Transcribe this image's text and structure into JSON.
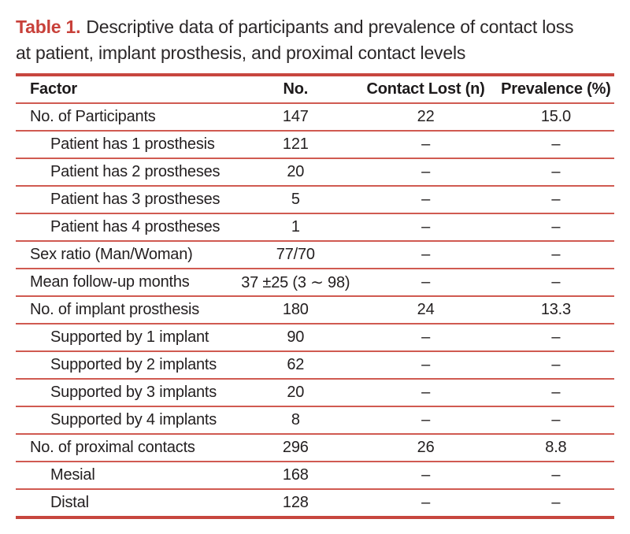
{
  "caption": {
    "label": "Table 1.",
    "line1": "Descriptive data of participants and prevalence of contact loss",
    "line2": "at patient, implant prosthesis, and proximal contact levels"
  },
  "table": {
    "columns": [
      "Factor",
      "No.",
      "Contact Lost (n)",
      "Prevalence (%)"
    ],
    "rows": [
      {
        "factor": "No. of Participants",
        "indent": false,
        "no": "147",
        "lost": "22",
        "prev": "15.0"
      },
      {
        "factor": "Patient has 1 prosthesis",
        "indent": true,
        "no": "121",
        "lost": "–",
        "prev": "–"
      },
      {
        "factor": "Patient has 2 prostheses",
        "indent": true,
        "no": "20",
        "lost": "–",
        "prev": "–"
      },
      {
        "factor": "Patient has 3 prostheses",
        "indent": true,
        "no": "5",
        "lost": "–",
        "prev": "–"
      },
      {
        "factor": "Patient has 4 prostheses",
        "indent": true,
        "no": "1",
        "lost": "–",
        "prev": "–"
      },
      {
        "factor": "Sex ratio (Man/Woman)",
        "indent": false,
        "no": "77/70",
        "lost": "–",
        "prev": "–"
      },
      {
        "factor": "Mean follow-up months",
        "indent": false,
        "no": "37 ±25 (3 ∼ 98)",
        "lost": "–",
        "prev": "–"
      },
      {
        "factor": "No. of implant prosthesis",
        "indent": false,
        "no": "180",
        "lost": "24",
        "prev": "13.3"
      },
      {
        "factor": "Supported by 1 implant",
        "indent": true,
        "no": "90",
        "lost": "–",
        "prev": "–"
      },
      {
        "factor": "Supported by 2 implants",
        "indent": true,
        "no": "62",
        "lost": "–",
        "prev": "–"
      },
      {
        "factor": "Supported by 3 implants",
        "indent": true,
        "no": "20",
        "lost": "–",
        "prev": "–"
      },
      {
        "factor": "Supported by 4 implants",
        "indent": true,
        "no": "8",
        "lost": "–",
        "prev": "–"
      },
      {
        "factor": "No. of proximal contacts",
        "indent": false,
        "no": "296",
        "lost": "26",
        "prev": "8.8"
      },
      {
        "factor": "Mesial",
        "indent": true,
        "no": "168",
        "lost": "–",
        "prev": "–"
      },
      {
        "factor": "Distal",
        "indent": true,
        "no": "128",
        "lost": "–",
        "prev": "–"
      }
    ]
  },
  "colors": {
    "accent_red": "#c8413a",
    "thick_rule_red": "#c7463e",
    "thin_rule_red": "#d05a51",
    "text": "#262223"
  }
}
